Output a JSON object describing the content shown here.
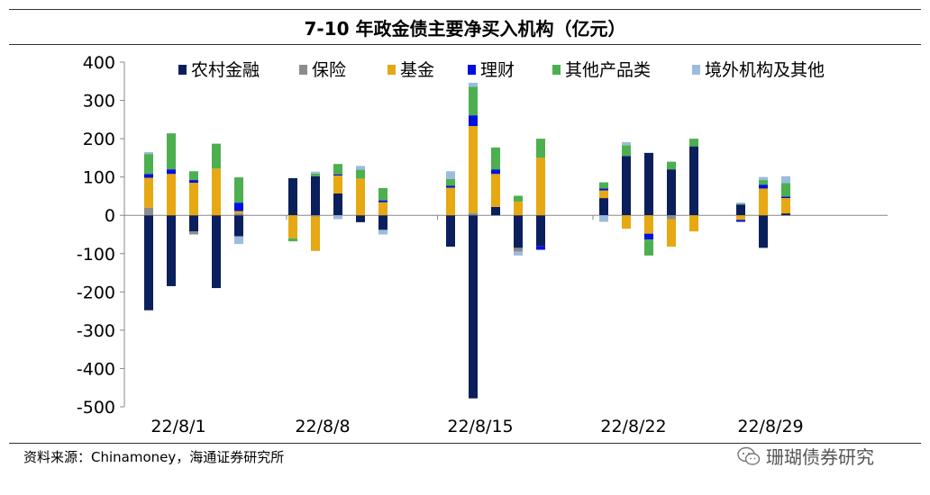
{
  "title": "7-10 年政金债主要净买入机构（亿元）",
  "source": "资料来源：Chinamoney，海通证券研究所",
  "watermark": "珊瑚债券研究",
  "chart_data": {
    "type": "bar",
    "stacked": true,
    "ylim": [
      -500,
      400
    ],
    "yticks": [
      400,
      300,
      200,
      100,
      0,
      -100,
      -200,
      -300,
      -400,
      -500
    ],
    "legend_position": "top",
    "x_tick_labels": [
      "22/8/1",
      "22/8/8",
      "22/8/15",
      "22/8/22",
      "22/8/29"
    ],
    "groups": [
      {
        "label": "22/8/1",
        "bars": 5
      },
      {
        "label": "22/8/8",
        "bars": 5
      },
      {
        "label": "22/8/15",
        "bars": 5
      },
      {
        "label": "22/8/22",
        "bars": 5
      },
      {
        "label": "22/8/29",
        "bars": 5
      }
    ],
    "series": [
      {
        "name": "农村金融",
        "color": "#0b1f5c",
        "values": [
          -248,
          -185,
          -42,
          -190,
          -55,
          97,
          102,
          57,
          -18,
          -38,
          -82,
          -478,
          22,
          -85,
          -80,
          45,
          155,
          163,
          120,
          180,
          28,
          -85,
          5,
          0,
          0
        ]
      },
      {
        "name": "保险",
        "color": "#8c8c8c",
        "values": [
          20,
          0,
          -8,
          0,
          5,
          0,
          -3,
          0,
          0,
          0,
          0,
          6,
          0,
          -10,
          0,
          0,
          0,
          0,
          -10,
          0,
          0,
          0,
          0,
          0,
          0
        ]
      },
      {
        "name": "基金",
        "color": "#e6a813",
        "values": [
          78,
          108,
          85,
          122,
          6,
          -60,
          -90,
          47,
          96,
          34,
          72,
          227,
          86,
          36,
          150,
          20,
          -35,
          -48,
          -72,
          -42,
          -12,
          70,
          40,
          0,
          0
        ]
      },
      {
        "name": "理财",
        "color": "#0010e0",
        "values": [
          10,
          12,
          7,
          0,
          22,
          0,
          0,
          3,
          0,
          5,
          5,
          28,
          12,
          0,
          -10,
          5,
          0,
          -15,
          0,
          0,
          -5,
          10,
          4,
          0,
          0
        ]
      },
      {
        "name": "其他产品类",
        "color": "#4caf50",
        "values": [
          52,
          94,
          23,
          65,
          66,
          -8,
          7,
          27,
          23,
          32,
          18,
          75,
          57,
          15,
          50,
          16,
          28,
          -42,
          20,
          20,
          2,
          12,
          35,
          0,
          0
        ]
      },
      {
        "name": "境外机构及其他",
        "color": "#9dbbdd",
        "values": [
          5,
          0,
          0,
          0,
          -20,
          0,
          5,
          -10,
          10,
          -12,
          20,
          10,
          0,
          -10,
          0,
          -17,
          8,
          0,
          0,
          0,
          3,
          8,
          18,
          0,
          0
        ]
      }
    ]
  }
}
